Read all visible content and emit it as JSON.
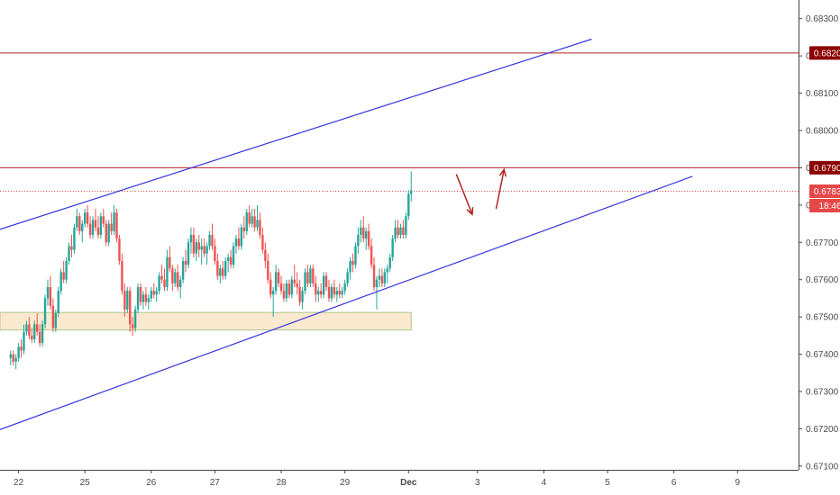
{
  "chart_data": {
    "type": "candlestick",
    "title": "",
    "y_axis": {
      "min": 0.6709,
      "max": 0.6835,
      "ticks": [
        "0.67100",
        "0.67200",
        "0.67300",
        "0.67400",
        "0.67500",
        "0.67600",
        "0.67700",
        "0.67800",
        "0.67900",
        "0.68000",
        "0.68100",
        "0.68200",
        "0.68300"
      ]
    },
    "x_axis": {
      "labels": [
        {
          "text": "22",
          "index": 3,
          "bold": false
        },
        {
          "text": "25",
          "index": 28,
          "bold": false
        },
        {
          "text": "26",
          "index": 53,
          "bold": false
        },
        {
          "text": "27",
          "index": 77,
          "bold": false
        },
        {
          "text": "28",
          "index": 102,
          "bold": false
        },
        {
          "text": "29",
          "index": 126,
          "bold": false
        },
        {
          "text": "Dec",
          "index": 150,
          "bold": true
        },
        {
          "text": "3",
          "index": 176,
          "bold": false
        },
        {
          "text": "4",
          "index": 201,
          "bold": false
        },
        {
          "text": "5",
          "index": 225,
          "bold": false
        },
        {
          "text": "6",
          "index": 250,
          "bold": false
        },
        {
          "text": "9",
          "index": 274,
          "bold": false
        }
      ],
      "index_range": [
        -4,
        297
      ]
    },
    "price_tags": [
      {
        "value": "0.68208",
        "color": "#8b0000"
      },
      {
        "value": "0.67900",
        "color": "#8b0000"
      },
      {
        "value": "0.67837",
        "color": "#e54848"
      },
      {
        "value": "18:46",
        "color": "#e54848"
      }
    ],
    "current_price": 0.67837,
    "horizontal_lines": [
      {
        "price": 0.68208,
        "color": "#b22222",
        "style": "solid"
      },
      {
        "price": 0.679,
        "color": "#b22222",
        "style": "solid"
      },
      {
        "price": 0.67837,
        "color": "#e54848",
        "style": "dotted"
      }
    ],
    "trend_lines": [
      {
        "from": {
          "index": -4,
          "price": 0.67735
        },
        "to": {
          "index": 219,
          "price": 0.68245
        },
        "color": "#3333dd"
      },
      {
        "from": {
          "index": -4,
          "price": 0.67198
        },
        "to": {
          "index": 257,
          "price": 0.67877
        },
        "color": "#3333dd"
      }
    ],
    "zone": {
      "from_index": -4,
      "to_index": 151,
      "low": 0.67465,
      "high": 0.67512,
      "fill": "#fbe9cf",
      "stroke": "#a8c98a"
    },
    "arrows": [
      {
        "from": {
          "index": 168,
          "price": 0.67883
        },
        "to": {
          "index": 174,
          "price": 0.67775
        },
        "color": "#b22222"
      },
      {
        "from": {
          "index": 183,
          "price": 0.6779
        },
        "to": {
          "index": 186,
          "price": 0.67895
        },
        "color": "#b22222"
      }
    ],
    "colors": {
      "up": "#26a69a",
      "down": "#ef5350"
    },
    "candles": [
      [
        0.6739,
        0.6741,
        0.6737,
        0.674
      ],
      [
        0.674,
        0.6741,
        0.6737,
        0.6738
      ],
      [
        0.6738,
        0.674,
        0.6736,
        0.6739
      ],
      [
        0.6739,
        0.6743,
        0.6738,
        0.6742
      ],
      [
        0.6742,
        0.6744,
        0.6739,
        0.6741
      ],
      [
        0.6741,
        0.6748,
        0.674,
        0.6746
      ],
      [
        0.6746,
        0.6749,
        0.6745,
        0.6748
      ],
      [
        0.6748,
        0.675,
        0.6744,
        0.6745
      ],
      [
        0.6745,
        0.6747,
        0.6743,
        0.6744
      ],
      [
        0.6744,
        0.6749,
        0.6743,
        0.6748
      ],
      [
        0.6748,
        0.6751,
        0.6745,
        0.6746
      ],
      [
        0.6746,
        0.6748,
        0.6742,
        0.6743
      ],
      [
        0.6743,
        0.6749,
        0.6742,
        0.6748
      ],
      [
        0.6748,
        0.6756,
        0.6747,
        0.6755
      ],
      [
        0.6755,
        0.676,
        0.6753,
        0.6758
      ],
      [
        0.6758,
        0.6761,
        0.6752,
        0.6753
      ],
      [
        0.6753,
        0.6755,
        0.6746,
        0.6747
      ],
      [
        0.6747,
        0.6752,
        0.6746,
        0.6751
      ],
      [
        0.6751,
        0.6758,
        0.675,
        0.6757
      ],
      [
        0.6757,
        0.6763,
        0.6756,
        0.6762
      ],
      [
        0.6762,
        0.6765,
        0.6759,
        0.676
      ],
      [
        0.676,
        0.6766,
        0.6759,
        0.6765
      ],
      [
        0.6765,
        0.677,
        0.6764,
        0.6769
      ],
      [
        0.6769,
        0.6772,
        0.6766,
        0.6768
      ],
      [
        0.6768,
        0.6775,
        0.6767,
        0.6774
      ],
      [
        0.6774,
        0.6779,
        0.6773,
        0.6777
      ],
      [
        0.6777,
        0.6778,
        0.6772,
        0.6773
      ],
      [
        0.6773,
        0.6776,
        0.677,
        0.6775
      ],
      [
        0.6775,
        0.6779,
        0.6774,
        0.6778
      ],
      [
        0.6778,
        0.678,
        0.6774,
        0.6775
      ],
      [
        0.6775,
        0.6777,
        0.6771,
        0.6772
      ],
      [
        0.6772,
        0.6777,
        0.6771,
        0.6776
      ],
      [
        0.6776,
        0.6779,
        0.6773,
        0.6774
      ],
      [
        0.6774,
        0.6777,
        0.6771,
        0.6772
      ],
      [
        0.6772,
        0.6778,
        0.6771,
        0.6777
      ],
      [
        0.6777,
        0.6779,
        0.6774,
        0.6775
      ],
      [
        0.6775,
        0.6776,
        0.6769,
        0.677
      ],
      [
        0.677,
        0.6776,
        0.6769,
        0.6775
      ],
      [
        0.6775,
        0.6778,
        0.6772,
        0.6773
      ],
      [
        0.6773,
        0.678,
        0.6772,
        0.6778
      ],
      [
        0.6778,
        0.6779,
        0.677,
        0.6771
      ],
      [
        0.6771,
        0.6772,
        0.6764,
        0.6765
      ],
      [
        0.6765,
        0.6767,
        0.6756,
        0.6757
      ],
      [
        0.6757,
        0.6759,
        0.675,
        0.6752
      ],
      [
        0.6752,
        0.6758,
        0.6751,
        0.6757
      ],
      [
        0.6757,
        0.6758,
        0.6746,
        0.6748
      ],
      [
        0.6748,
        0.675,
        0.6745,
        0.6747
      ],
      [
        0.6747,
        0.6753,
        0.6746,
        0.6752
      ],
      [
        0.6752,
        0.6759,
        0.6751,
        0.6758
      ],
      [
        0.6758,
        0.6759,
        0.6753,
        0.6754
      ],
      [
        0.6754,
        0.6757,
        0.6752,
        0.6756
      ],
      [
        0.6756,
        0.6758,
        0.6753,
        0.6754
      ],
      [
        0.6754,
        0.6756,
        0.6752,
        0.6755
      ],
      [
        0.6755,
        0.6758,
        0.6754,
        0.6757
      ],
      [
        0.6757,
        0.6759,
        0.6755,
        0.6756
      ],
      [
        0.6756,
        0.6758,
        0.6754,
        0.6757
      ],
      [
        0.6757,
        0.6762,
        0.6756,
        0.6761
      ],
      [
        0.6761,
        0.6764,
        0.6759,
        0.676
      ],
      [
        0.676,
        0.6763,
        0.6757,
        0.6758
      ],
      [
        0.6758,
        0.6768,
        0.6757,
        0.6766
      ],
      [
        0.6766,
        0.6769,
        0.6762,
        0.6763
      ],
      [
        0.6763,
        0.6764,
        0.6757,
        0.6759
      ],
      [
        0.6759,
        0.6763,
        0.6758,
        0.6762
      ],
      [
        0.6762,
        0.6764,
        0.6757,
        0.6758
      ],
      [
        0.6758,
        0.6761,
        0.6755,
        0.676
      ],
      [
        0.676,
        0.6766,
        0.6759,
        0.6765
      ],
      [
        0.6765,
        0.6768,
        0.6762,
        0.6764
      ],
      [
        0.6764,
        0.6771,
        0.6763,
        0.677
      ],
      [
        0.677,
        0.6774,
        0.6767,
        0.6772
      ],
      [
        0.6772,
        0.6774,
        0.6766,
        0.6767
      ],
      [
        0.6767,
        0.6771,
        0.6765,
        0.677
      ],
      [
        0.677,
        0.6772,
        0.6766,
        0.6768
      ],
      [
        0.6768,
        0.6771,
        0.6764,
        0.6769
      ],
      [
        0.6769,
        0.6771,
        0.6766,
        0.6767
      ],
      [
        0.6767,
        0.677,
        0.6764,
        0.6769
      ],
      [
        0.6769,
        0.6773,
        0.6768,
        0.6772
      ],
      [
        0.6772,
        0.6775,
        0.6768,
        0.6769
      ],
      [
        0.6769,
        0.6771,
        0.6764,
        0.6765
      ],
      [
        0.6765,
        0.6767,
        0.676,
        0.6761
      ],
      [
        0.6761,
        0.6764,
        0.6759,
        0.6763
      ],
      [
        0.6763,
        0.6765,
        0.676,
        0.6761
      ],
      [
        0.6761,
        0.6766,
        0.676,
        0.6765
      ],
      [
        0.6765,
        0.6767,
        0.6762,
        0.6766
      ],
      [
        0.6766,
        0.6768,
        0.6763,
        0.6764
      ],
      [
        0.6764,
        0.677,
        0.6763,
        0.6769
      ],
      [
        0.6769,
        0.6772,
        0.6767,
        0.6771
      ],
      [
        0.6771,
        0.6774,
        0.6768,
        0.6769
      ],
      [
        0.6769,
        0.6775,
        0.6768,
        0.6774
      ],
      [
        0.6774,
        0.6777,
        0.6771,
        0.6773
      ],
      [
        0.6773,
        0.6779,
        0.6772,
        0.6778
      ],
      [
        0.6778,
        0.678,
        0.6774,
        0.6775
      ],
      [
        0.6775,
        0.6779,
        0.6774,
        0.6777
      ],
      [
        0.6777,
        0.6779,
        0.6773,
        0.6774
      ],
      [
        0.6774,
        0.678,
        0.6773,
        0.6776
      ],
      [
        0.6776,
        0.6778,
        0.6771,
        0.6772
      ],
      [
        0.6772,
        0.6774,
        0.6767,
        0.6768
      ],
      [
        0.6768,
        0.677,
        0.6763,
        0.6765
      ],
      [
        0.6765,
        0.6767,
        0.6759,
        0.676
      ],
      [
        0.676,
        0.6762,
        0.6755,
        0.6756
      ],
      [
        0.6756,
        0.6758,
        0.675,
        0.6757
      ],
      [
        0.6757,
        0.6764,
        0.6756,
        0.6762
      ],
      [
        0.6762,
        0.6763,
        0.6758,
        0.6759
      ],
      [
        0.6759,
        0.6761,
        0.6756,
        0.6757
      ],
      [
        0.6757,
        0.6759,
        0.6754,
        0.6755
      ],
      [
        0.6755,
        0.676,
        0.6754,
        0.6759
      ],
      [
        0.6759,
        0.676,
        0.6755,
        0.6756
      ],
      [
        0.6756,
        0.6761,
        0.6755,
        0.676
      ],
      [
        0.676,
        0.6764,
        0.6758,
        0.6759
      ],
      [
        0.6759,
        0.6762,
        0.6756,
        0.6758
      ],
      [
        0.6758,
        0.676,
        0.6753,
        0.6754
      ],
      [
        0.6754,
        0.6758,
        0.6752,
        0.6757
      ],
      [
        0.6757,
        0.6763,
        0.6756,
        0.6762
      ],
      [
        0.6762,
        0.6764,
        0.6758,
        0.6759
      ],
      [
        0.6759,
        0.6764,
        0.6758,
        0.6763
      ],
      [
        0.6763,
        0.6764,
        0.6758,
        0.6759
      ],
      [
        0.6759,
        0.6761,
        0.6754,
        0.6756
      ],
      [
        0.6756,
        0.6758,
        0.6754,
        0.6757
      ],
      [
        0.6757,
        0.6759,
        0.6755,
        0.6756
      ],
      [
        0.6756,
        0.6762,
        0.6755,
        0.6761
      ],
      [
        0.6761,
        0.6762,
        0.6757,
        0.6758
      ],
      [
        0.6758,
        0.676,
        0.6754,
        0.6755
      ],
      [
        0.6755,
        0.6759,
        0.6754,
        0.6758
      ],
      [
        0.6758,
        0.676,
        0.6755,
        0.6756
      ],
      [
        0.6756,
        0.6758,
        0.6754,
        0.6757
      ],
      [
        0.6757,
        0.6759,
        0.6755,
        0.6756
      ],
      [
        0.6756,
        0.6758,
        0.6755,
        0.6757
      ],
      [
        0.6757,
        0.676,
        0.6756,
        0.6759
      ],
      [
        0.6759,
        0.6763,
        0.6758,
        0.6762
      ],
      [
        0.6762,
        0.6766,
        0.676,
        0.6765
      ],
      [
        0.6765,
        0.6767,
        0.6762,
        0.6764
      ],
      [
        0.6764,
        0.677,
        0.6763,
        0.6769
      ],
      [
        0.6769,
        0.6774,
        0.6767,
        0.6772
      ],
      [
        0.6772,
        0.6776,
        0.677,
        0.6774
      ],
      [
        0.6774,
        0.6777,
        0.677,
        0.6771
      ],
      [
        0.6771,
        0.6774,
        0.6768,
        0.6773
      ],
      [
        0.6773,
        0.6775,
        0.6768,
        0.6769
      ],
      [
        0.6769,
        0.6771,
        0.6763,
        0.6764
      ],
      [
        0.6764,
        0.6766,
        0.6757,
        0.6758
      ],
      [
        0.6758,
        0.6761,
        0.6752,
        0.676
      ],
      [
        0.676,
        0.6763,
        0.6758,
        0.6761
      ],
      [
        0.6761,
        0.6763,
        0.6758,
        0.6759
      ],
      [
        0.6759,
        0.6763,
        0.6758,
        0.6762
      ],
      [
        0.6762,
        0.6764,
        0.6759,
        0.6763
      ],
      [
        0.6763,
        0.6767,
        0.6762,
        0.6766
      ],
      [
        0.6766,
        0.6772,
        0.6765,
        0.6771
      ],
      [
        0.6771,
        0.6776,
        0.677,
        0.6774
      ],
      [
        0.6774,
        0.6776,
        0.6771,
        0.6772
      ],
      [
        0.6772,
        0.6775,
        0.6771,
        0.6774
      ],
      [
        0.6774,
        0.6776,
        0.6771,
        0.6772
      ],
      [
        0.6772,
        0.6778,
        0.6771,
        0.6777
      ],
      [
        0.6777,
        0.6784,
        0.6776,
        0.6783
      ],
      [
        0.6783,
        0.6789,
        0.6781,
        0.6784
      ]
    ]
  }
}
